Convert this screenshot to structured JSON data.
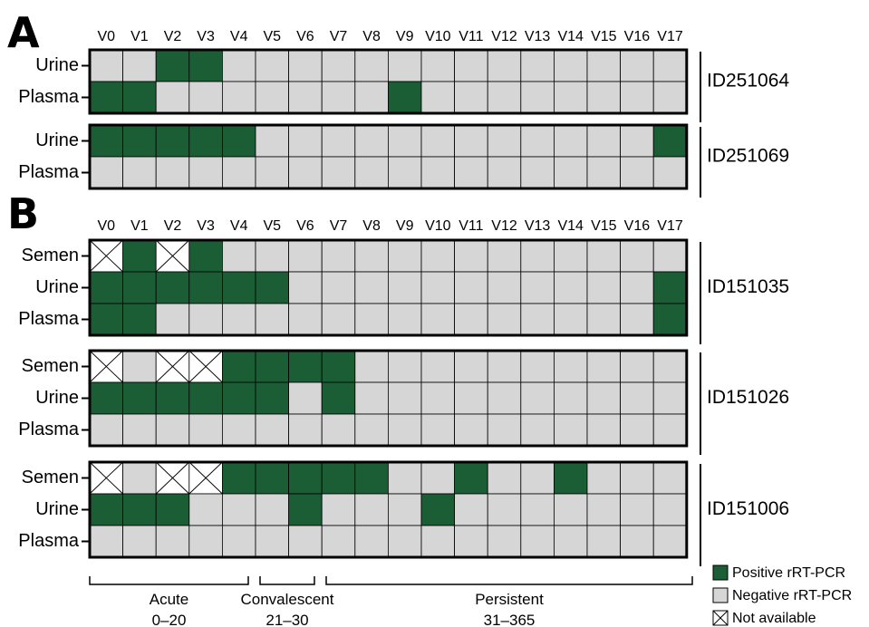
{
  "chart_data": {
    "type": "heatmap",
    "visits": [
      "V0",
      "V1",
      "V2",
      "V3",
      "V4",
      "V5",
      "V6",
      "V7",
      "V8",
      "V9",
      "V10",
      "V11",
      "V12",
      "V13",
      "V14",
      "V15",
      "V16",
      "V17"
    ],
    "status_codes": {
      "P": "Positive rRT-PCR",
      "N": "Negative rRT-PCR",
      "X": "Not available"
    },
    "colors": {
      "positive": "#1b5e36",
      "negative": "#d6d6d6",
      "not_available": "#ffffff"
    },
    "panels": [
      {
        "letter": "A",
        "patients": [
          {
            "id": "ID251064",
            "rows": [
              {
                "specimen": "Urine",
                "status": [
                  "N",
                  "N",
                  "P",
                  "P",
                  "N",
                  "N",
                  "N",
                  "N",
                  "N",
                  "N",
                  "N",
                  "N",
                  "N",
                  "N",
                  "N",
                  "N",
                  "N",
                  "N"
                ]
              },
              {
                "specimen": "Plasma",
                "status": [
                  "P",
                  "P",
                  "N",
                  "N",
                  "N",
                  "N",
                  "N",
                  "N",
                  "N",
                  "P",
                  "N",
                  "N",
                  "N",
                  "N",
                  "N",
                  "N",
                  "N",
                  "N"
                ]
              }
            ]
          },
          {
            "id": "ID251069",
            "rows": [
              {
                "specimen": "Urine",
                "status": [
                  "P",
                  "P",
                  "P",
                  "P",
                  "P",
                  "N",
                  "N",
                  "N",
                  "N",
                  "N",
                  "N",
                  "N",
                  "N",
                  "N",
                  "N",
                  "N",
                  "N",
                  "P"
                ]
              },
              {
                "specimen": "Plasma",
                "status": [
                  "N",
                  "N",
                  "N",
                  "N",
                  "N",
                  "N",
                  "N",
                  "N",
                  "N",
                  "N",
                  "N",
                  "N",
                  "N",
                  "N",
                  "N",
                  "N",
                  "N",
                  "N"
                ]
              }
            ]
          }
        ]
      },
      {
        "letter": "B",
        "patients": [
          {
            "id": "ID151035",
            "rows": [
              {
                "specimen": "Semen",
                "status": [
                  "X",
                  "P",
                  "X",
                  "P",
                  "N",
                  "N",
                  "N",
                  "N",
                  "N",
                  "N",
                  "N",
                  "N",
                  "N",
                  "N",
                  "N",
                  "N",
                  "N",
                  "N"
                ]
              },
              {
                "specimen": "Urine",
                "status": [
                  "P",
                  "P",
                  "P",
                  "P",
                  "P",
                  "P",
                  "N",
                  "N",
                  "N",
                  "N",
                  "N",
                  "N",
                  "N",
                  "N",
                  "N",
                  "N",
                  "N",
                  "P"
                ]
              },
              {
                "specimen": "Plasma",
                "status": [
                  "P",
                  "P",
                  "N",
                  "N",
                  "N",
                  "N",
                  "N",
                  "N",
                  "N",
                  "N",
                  "N",
                  "N",
                  "N",
                  "N",
                  "N",
                  "N",
                  "N",
                  "P"
                ]
              }
            ]
          },
          {
            "id": "ID151026",
            "rows": [
              {
                "specimen": "Semen",
                "status": [
                  "X",
                  "N",
                  "X",
                  "X",
                  "P",
                  "P",
                  "P",
                  "P",
                  "N",
                  "N",
                  "N",
                  "N",
                  "N",
                  "N",
                  "N",
                  "N",
                  "N",
                  "N"
                ]
              },
              {
                "specimen": "Urine",
                "status": [
                  "P",
                  "P",
                  "P",
                  "P",
                  "P",
                  "P",
                  "N",
                  "P",
                  "N",
                  "N",
                  "N",
                  "N",
                  "N",
                  "N",
                  "N",
                  "N",
                  "N",
                  "N"
                ]
              },
              {
                "specimen": "Plasma",
                "status": [
                  "N",
                  "N",
                  "N",
                  "N",
                  "N",
                  "N",
                  "N",
                  "N",
                  "N",
                  "N",
                  "N",
                  "N",
                  "N",
                  "N",
                  "N",
                  "N",
                  "N",
                  "N"
                ]
              }
            ]
          },
          {
            "id": "ID151006",
            "rows": [
              {
                "specimen": "Semen",
                "status": [
                  "X",
                  "N",
                  "X",
                  "X",
                  "P",
                  "P",
                  "P",
                  "P",
                  "P",
                  "N",
                  "N",
                  "P",
                  "N",
                  "N",
                  "P",
                  "N",
                  "N",
                  "N"
                ]
              },
              {
                "specimen": "Urine",
                "status": [
                  "P",
                  "P",
                  "P",
                  "N",
                  "N",
                  "N",
                  "P",
                  "N",
                  "N",
                  "N",
                  "P",
                  "N",
                  "N",
                  "N",
                  "N",
                  "N",
                  "N",
                  "N"
                ]
              },
              {
                "specimen": "Plasma",
                "status": [
                  "N",
                  "N",
                  "N",
                  "N",
                  "N",
                  "N",
                  "N",
                  "N",
                  "N",
                  "N",
                  "N",
                  "N",
                  "N",
                  "N",
                  "N",
                  "N",
                  "N",
                  "N"
                ]
              }
            ]
          }
        ]
      }
    ],
    "phases": [
      {
        "name": "Acute",
        "range": "0–20",
        "from_visit": "V0",
        "to_visit": "V4"
      },
      {
        "name": "Convalescent",
        "range": "21–30",
        "from_visit": "V5",
        "to_visit": "V6"
      },
      {
        "name": "Persistent",
        "range": "31–365",
        "from_visit": "V7",
        "to_visit": "V17"
      }
    ],
    "legend": [
      {
        "code": "P",
        "label": "Positive rRT-PCR"
      },
      {
        "code": "N",
        "label": "Negative rRT-PCR"
      },
      {
        "code": "X",
        "label": "Not available"
      }
    ],
    "legend_placement": "bottom-right"
  }
}
